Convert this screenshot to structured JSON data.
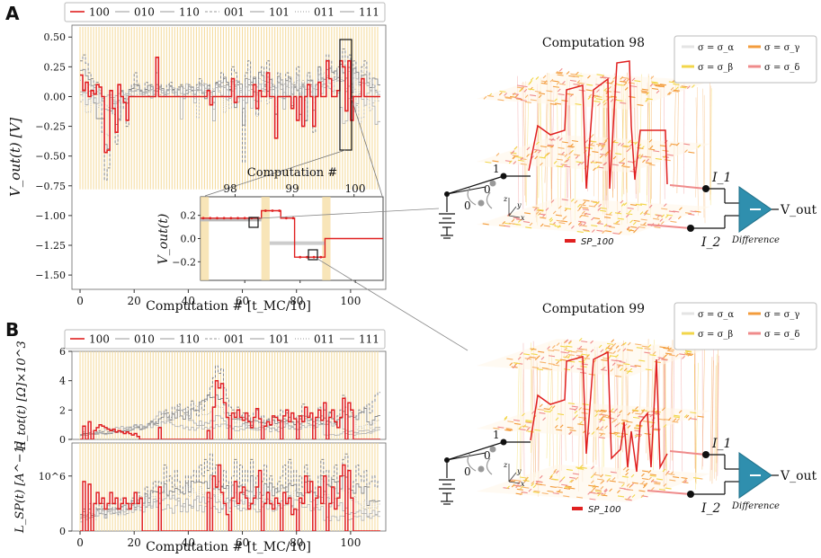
{
  "panels": {
    "A": "A",
    "B": "B"
  },
  "legend_series": [
    "100",
    "010",
    "110",
    "001",
    "101",
    "011",
    "111"
  ],
  "colors": {
    "highlight": "#e02020",
    "grey": "#9a9a9a",
    "band": "#f5dca0",
    "lattice_orange": "#f39c3c",
    "lattice_yellow": "#f2d64a",
    "lattice_pink": "#ef8b8b",
    "amp": "#2f8fae"
  },
  "chart_data": [
    {
      "type": "line",
      "id": "vout",
      "title": "",
      "xlabel": "Computation #   [t_MC/10]",
      "ylabel": "V_out(t)   [V]",
      "xlim": [
        -3,
        113
      ],
      "ylim": [
        -1.62,
        0.6
      ],
      "xticks": [
        0,
        20,
        40,
        60,
        80,
        100
      ],
      "yticks": [
        0.5,
        0.25,
        0.0,
        -0.25,
        -0.5,
        -0.75,
        -1.0,
        -1.25,
        -1.5
      ],
      "ytick_labels": [
        "0.50",
        "0.25",
        "0.00",
        "−0.25",
        "−0.50",
        "−0.75",
        "−1.00",
        "−1.25",
        "−1.50"
      ],
      "highlight_series": "100",
      "series_100": [
        0.18,
        0.05,
        0.12,
        0.0,
        0.05,
        0.02,
        0.1,
        0.08,
        0.0,
        -0.47,
        -0.45,
        0.05,
        -0.1,
        -0.3,
        0.1,
        0.0,
        -0.05,
        -0.2,
        0.0,
        0.0,
        0.0,
        0.0,
        0.0,
        0.0,
        0.0,
        0.0,
        0.0,
        0.0,
        0.33,
        0.0,
        0.0,
        0.0,
        0.0,
        0.0,
        0.0,
        0.0,
        0.0,
        0.0,
        0.0,
        0.0,
        0.0,
        0.0,
        0.0,
        0.0,
        0.0,
        0.0,
        0.0,
        0.05,
        -0.07,
        0.0,
        0.0,
        0.0,
        0.0,
        0.0,
        0.0,
        0.0,
        0.15,
        -0.05,
        0.0,
        0.0,
        0.0,
        0.0,
        0.0,
        0.0,
        0.1,
        -0.1,
        0.05,
        0.0,
        0.0,
        0.2,
        0.0,
        0.0,
        -0.35,
        0.0,
        0.0,
        0.0,
        0.0,
        0.0,
        -0.1,
        0.0,
        -0.2,
        0.0,
        -0.25,
        0.0,
        0.1,
        0.0,
        -0.25,
        0.0,
        0.12,
        0.0,
        0.0,
        0.3,
        0.15,
        0.0,
        0.0,
        0.05,
        0.3,
        0.25,
        -0.12,
        0.3,
        -0.2,
        0.0,
        0.0,
        0.0,
        0.15,
        0.0,
        0.0,
        0.0,
        0.0,
        0.0,
        0.0
      ],
      "series_grey_a": [
        0.3,
        0.35,
        0.28,
        0.2,
        0.15,
        0.1,
        0.12,
        0.05,
        -0.3,
        -0.7,
        -0.6,
        -0.1,
        -0.15,
        -0.4,
        -0.2,
        0.05,
        -0.1,
        -0.25,
        0.05,
        0.1,
        0.2,
        0.1,
        0.05,
        0.0,
        0.12,
        0.05,
        0.1,
        0.0,
        0.2,
        0.1,
        0.05,
        0.0,
        0.1,
        0.12,
        0.05,
        0.0,
        0.08,
        0.1,
        0.0,
        0.05,
        0.1,
        0.05,
        0.0,
        0.1,
        0.15,
        0.05,
        0.0,
        0.1,
        0.0,
        -0.05,
        0.12,
        0.1,
        0.2,
        0.15,
        0.1,
        0.05,
        0.25,
        0.2,
        0.1,
        0.0,
        -0.55,
        0.2,
        0.3,
        0.1,
        0.15,
        -0.15,
        0.2,
        0.25,
        0.1,
        0.3,
        0.15,
        0.1,
        -0.3,
        0.2,
        0.1,
        0.0,
        0.2,
        0.15,
        -0.05,
        0.1,
        0.25,
        -0.15,
        0.1,
        -0.2,
        0.2,
        0.1,
        -0.3,
        0.1,
        0.25,
        0.1,
        0.15,
        0.35,
        0.3,
        0.2,
        0.15,
        0.25,
        0.3,
        0.4,
        0.1,
        0.35,
        0.0,
        0.3,
        0.2,
        0.1,
        0.25,
        0.3,
        0.2,
        0.15,
        0.1,
        0.05,
        0.0
      ]
    },
    {
      "type": "line",
      "id": "inset",
      "title": "Computation #",
      "xlabel": "",
      "ylabel": "V_out(t)",
      "xlim": [
        44,
        110
      ],
      "ylim": [
        -0.45,
        0.45
      ],
      "xticks": [
        40,
        60,
        80,
        100
      ],
      "xtick_labels_top": [
        "98",
        "99",
        "100"
      ],
      "yticks": [
        0.25,
        0.0,
        -0.25
      ],
      "ytick_labels": [
        "0.2",
        "0.0",
        "−0.2"
      ],
      "steps": [
        {
          "x0": 44,
          "x1": 66,
          "y": 0.22
        },
        {
          "x0": 66,
          "x1": 73,
          "y": 0.3
        },
        {
          "x0": 73,
          "x1": 78,
          "y": 0.22
        },
        {
          "x0": 78,
          "x1": 89,
          "y": -0.2
        },
        {
          "x0": 89,
          "x1": 110,
          "y": 0.0
        }
      ]
    },
    {
      "type": "line",
      "id": "rtot",
      "xlabel": "",
      "ylabel": "R_tot(t)   [Ω]×10^3",
      "xlim": [
        -3,
        113
      ],
      "ylim": [
        0,
        6
      ],
      "yticks": [
        0,
        2,
        4,
        6
      ],
      "ytick_labels": [
        "0",
        "2",
        "4",
        "6"
      ],
      "series_100": [
        0.0,
        0.9,
        0.0,
        1.2,
        0.0,
        0.6,
        0.8,
        1.0,
        0.9,
        0.8,
        0.7,
        0.6,
        0.7,
        0.5,
        0.6,
        0.5,
        0.4,
        0.5,
        0.4,
        0.3,
        0.4,
        0.2,
        0.0,
        0.0,
        0.0,
        0.0,
        0.0,
        0.0,
        0.0,
        0.8,
        0.0,
        0.0,
        0.0,
        0.0,
        0.0,
        0.0,
        0.0,
        0.0,
        0.0,
        0.0,
        0.0,
        0.0,
        0.0,
        0.0,
        0.0,
        0.0,
        0.0,
        0.6,
        0.0,
        2.2,
        4.0,
        3.5,
        3.8,
        2.5,
        1.5,
        0.0,
        1.8,
        1.5,
        2.0,
        1.5,
        1.3,
        1.8,
        1.2,
        0.8,
        1.5,
        2.1,
        1.4,
        0.0,
        0.9,
        1.2,
        1.0,
        1.6,
        1.5,
        1.3,
        0.0,
        1.6,
        2.0,
        1.2,
        1.8,
        1.4,
        0.0,
        1.6,
        1.2,
        2.2,
        1.5,
        1.8,
        0.0,
        1.5,
        2.0,
        1.3,
        2.5,
        0.0,
        1.5,
        2.0,
        1.2,
        0.8,
        1.5,
        2.8,
        0.0,
        2.5,
        2.0,
        0.0,
        0.0,
        0.0,
        0.0,
        0.0,
        0.0,
        0.0,
        0.0,
        0.0,
        0.0
      ],
      "series_grey_a": [
        0.3,
        0.5,
        0.4,
        0.6,
        0.5,
        0.4,
        0.5,
        0.6,
        0.5,
        0.4,
        0.5,
        0.4,
        0.6,
        0.5,
        0.6,
        0.5,
        0.6,
        0.7,
        0.8,
        0.9,
        1.0,
        0.9,
        0.8,
        0.7,
        0.8,
        1.0,
        1.2,
        1.0,
        1.2,
        1.4,
        1.8,
        2.0,
        1.8,
        1.5,
        2.2,
        2.0,
        2.4,
        2.0,
        1.8,
        2.2,
        1.6,
        2.6,
        2.0,
        1.6,
        2.4,
        2.0,
        2.6,
        3.0,
        3.6,
        4.2,
        5.0,
        4.5,
        4.8,
        3.5,
        2.8,
        2.2,
        2.0,
        1.8,
        2.2,
        1.6,
        1.8,
        1.4,
        1.6,
        1.2,
        1.8,
        2.0,
        1.4,
        1.6,
        1.2,
        1.4,
        1.0,
        1.5,
        1.2,
        1.6,
        2.0,
        1.4,
        1.8,
        1.5,
        1.2,
        1.0,
        1.6,
        1.4,
        2.4,
        1.8,
        1.6,
        1.4,
        1.2,
        1.5,
        2.2,
        1.6,
        2.0,
        1.2,
        1.8,
        1.4,
        1.0,
        1.6,
        2.0,
        3.0,
        2.2,
        2.0,
        1.8,
        1.5,
        1.6,
        2.0,
        1.8,
        2.2,
        2.4,
        1.8,
        2.6,
        3.0,
        3.2
      ]
    },
    {
      "type": "line",
      "id": "lsp",
      "xlabel": "Computation #   [t_MC/10]",
      "ylabel": "L_SP(t)   [A^−1]",
      "xlim": [
        -3,
        113
      ],
      "ylim": [
        0,
        1.6
      ],
      "xticks": [
        0,
        20,
        40,
        60,
        80,
        100
      ],
      "yticks": [
        0,
        1
      ],
      "ytick_labels": [
        "0",
        "10^6"
      ],
      "series_100": [
        0.0,
        0.9,
        0.0,
        0.85,
        0.0,
        0.5,
        0.7,
        0.5,
        0.6,
        0.4,
        0.5,
        0.7,
        0.5,
        0.6,
        0.4,
        0.5,
        0.6,
        0.5,
        0.4,
        0.5,
        0.7,
        0.5,
        0.6,
        0.0,
        0.0,
        0.0,
        0.0,
        0.0,
        0.0,
        0.8,
        0.0,
        0.0,
        0.0,
        0.0,
        0.0,
        0.0,
        0.0,
        0.0,
        0.0,
        0.0,
        0.0,
        0.0,
        0.0,
        0.0,
        0.0,
        0.0,
        0.0,
        0.7,
        0.0,
        1.0,
        0.8,
        1.2,
        0.7,
        0.5,
        0.3,
        0.0,
        0.6,
        0.9,
        0.5,
        0.7,
        0.8,
        0.6,
        0.4,
        0.5,
        0.6,
        0.8,
        1.1,
        0.0,
        0.5,
        0.7,
        0.5,
        0.4,
        0.6,
        0.5,
        0.0,
        0.7,
        0.5,
        0.6,
        0.3,
        0.4,
        0.0,
        0.6,
        0.5,
        1.0,
        0.7,
        0.9,
        0.0,
        0.6,
        0.8,
        0.5,
        1.0,
        0.0,
        0.5,
        0.8,
        0.4,
        0.6,
        1.0,
        1.2,
        0.0,
        1.1,
        0.6,
        0.0,
        0.0,
        0.0,
        0.0,
        0.0,
        0.0,
        0.0,
        0.0,
        0.0,
        0.0
      ],
      "series_grey_a": [
        0.3,
        0.4,
        0.3,
        0.5,
        0.4,
        0.3,
        0.5,
        0.4,
        0.5,
        0.3,
        0.4,
        0.5,
        0.4,
        0.5,
        0.3,
        0.6,
        0.5,
        0.4,
        0.5,
        0.6,
        0.5,
        0.7,
        0.6,
        0.5,
        0.8,
        0.6,
        0.7,
        0.9,
        0.8,
        0.9,
        0.7,
        1.2,
        0.9,
        1.0,
        0.8,
        1.1,
        0.9,
        0.7,
        0.8,
        1.0,
        0.8,
        1.0,
        1.1,
        0.9,
        1.2,
        1.0,
        1.3,
        1.1,
        1.4,
        1.0,
        1.2,
        0.9,
        0.8,
        1.1,
        0.9,
        0.7,
        1.0,
        1.3,
        0.8,
        1.2,
        0.7,
        1.1,
        0.9,
        1.3,
        0.8,
        1.0,
        0.7,
        0.9,
        1.2,
        0.8,
        1.0,
        0.8,
        0.7,
        0.9,
        1.0,
        1.2,
        0.8,
        1.3,
        0.9,
        1.1,
        0.7,
        1.0,
        0.8,
        1.2,
        1.0,
        0.9,
        0.7,
        0.8,
        1.0,
        1.3,
        0.9,
        1.1,
        0.8,
        1.0,
        1.2,
        0.9,
        1.0,
        1.3,
        1.4,
        1.0,
        0.8,
        0.9,
        1.2,
        1.0,
        0.9,
        1.1,
        0.8,
        0.9,
        1.0,
        0.8,
        0.9
      ]
    }
  ],
  "computations": [
    {
      "title": "Computation  98",
      "label": "SP_100"
    },
    {
      "title": "Computation  99",
      "label": "SP_100"
    }
  ],
  "sigma_legend": [
    "σ = σ_α",
    "σ = σ_γ",
    "σ = σ_β",
    "σ = σ_δ"
  ],
  "circuit": {
    "switch_one": "1",
    "switch_zero": "0",
    "i1": "I_1",
    "i2": "I_2",
    "vout": "V_out",
    "difference": "Difference",
    "axis_x": "x",
    "axis_y": "y",
    "axis_z": "z"
  }
}
